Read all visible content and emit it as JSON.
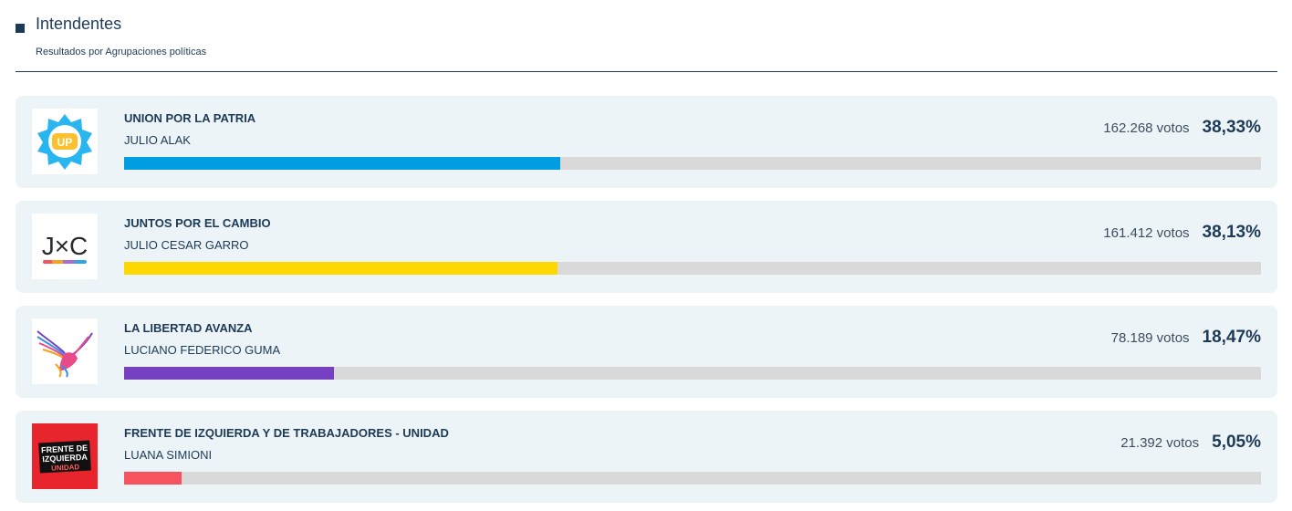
{
  "header": {
    "title": "Intendentes",
    "subtitle": "Resultados por Agrupaciones políticas"
  },
  "results": [
    {
      "party": "UNION POR LA PATRIA",
      "candidate": "JULIO ALAK",
      "votes": "162.268 votos",
      "percent": "38,33%",
      "share": 38.33,
      "color": "#009ee0",
      "logo_icon": "union-por-la-patria-logo",
      "logo_text": "UP"
    },
    {
      "party": "JUNTOS POR EL CAMBIO",
      "candidate": "JULIO CESAR GARRO",
      "votes": "161.412 votos",
      "percent": "38,13%",
      "share": 38.13,
      "color": "#ffd800",
      "logo_icon": "juntos-por-el-cambio-logo",
      "logo_text": "J×C"
    },
    {
      "party": "LA LIBERTAD AVANZA",
      "candidate": "LUCIANO FEDERICO GUMA",
      "votes": "78.189 votos",
      "percent": "18,47%",
      "share": 18.47,
      "color": "#7541c1",
      "logo_icon": "eagle-logo",
      "logo_text": ""
    },
    {
      "party": "FRENTE DE IZQUIERDA Y DE TRABAJADORES - UNIDAD",
      "candidate": "LUANA SIMIONI",
      "votes": "21.392 votos",
      "percent": "5,05%",
      "share": 5.05,
      "color": "#f6535e",
      "logo_icon": "frente-de-izquierda-logo",
      "logo_text": "FRENTE DE IZQUIERDA UNIDAD"
    }
  ]
}
